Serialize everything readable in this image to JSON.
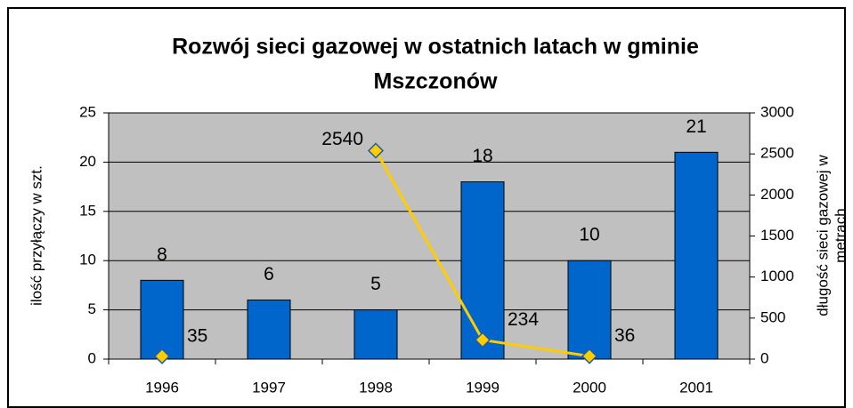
{
  "chart_data": {
    "type": "bar-line",
    "title": [
      "Rozwój sieci gazowej w ostatnich latach w gminie",
      "Mszczonów"
    ],
    "ylabel": "ilość przyłączy w szt.",
    "y2label": [
      "długość sieci gazowej w",
      "metrach"
    ],
    "categories": [
      "1996",
      "1997",
      "1998",
      "1999",
      "2000",
      "2001"
    ],
    "series": [
      {
        "type": "bar",
        "color": "#0066cc",
        "values": [
          8,
          6,
          5,
          18,
          10,
          21
        ]
      },
      {
        "type": "line",
        "axis": "y2",
        "color": "#ffcc00",
        "values": [
          35,
          null,
          2540,
          234,
          36,
          null
        ]
      }
    ],
    "ylim": [
      0,
      25
    ],
    "yticks": [
      0,
      5,
      10,
      15,
      20,
      25
    ],
    "y2lim": [
      0,
      3000
    ],
    "y2ticks": [
      0,
      500,
      1000,
      1500,
      2000,
      2500,
      3000
    ],
    "grid": true
  }
}
